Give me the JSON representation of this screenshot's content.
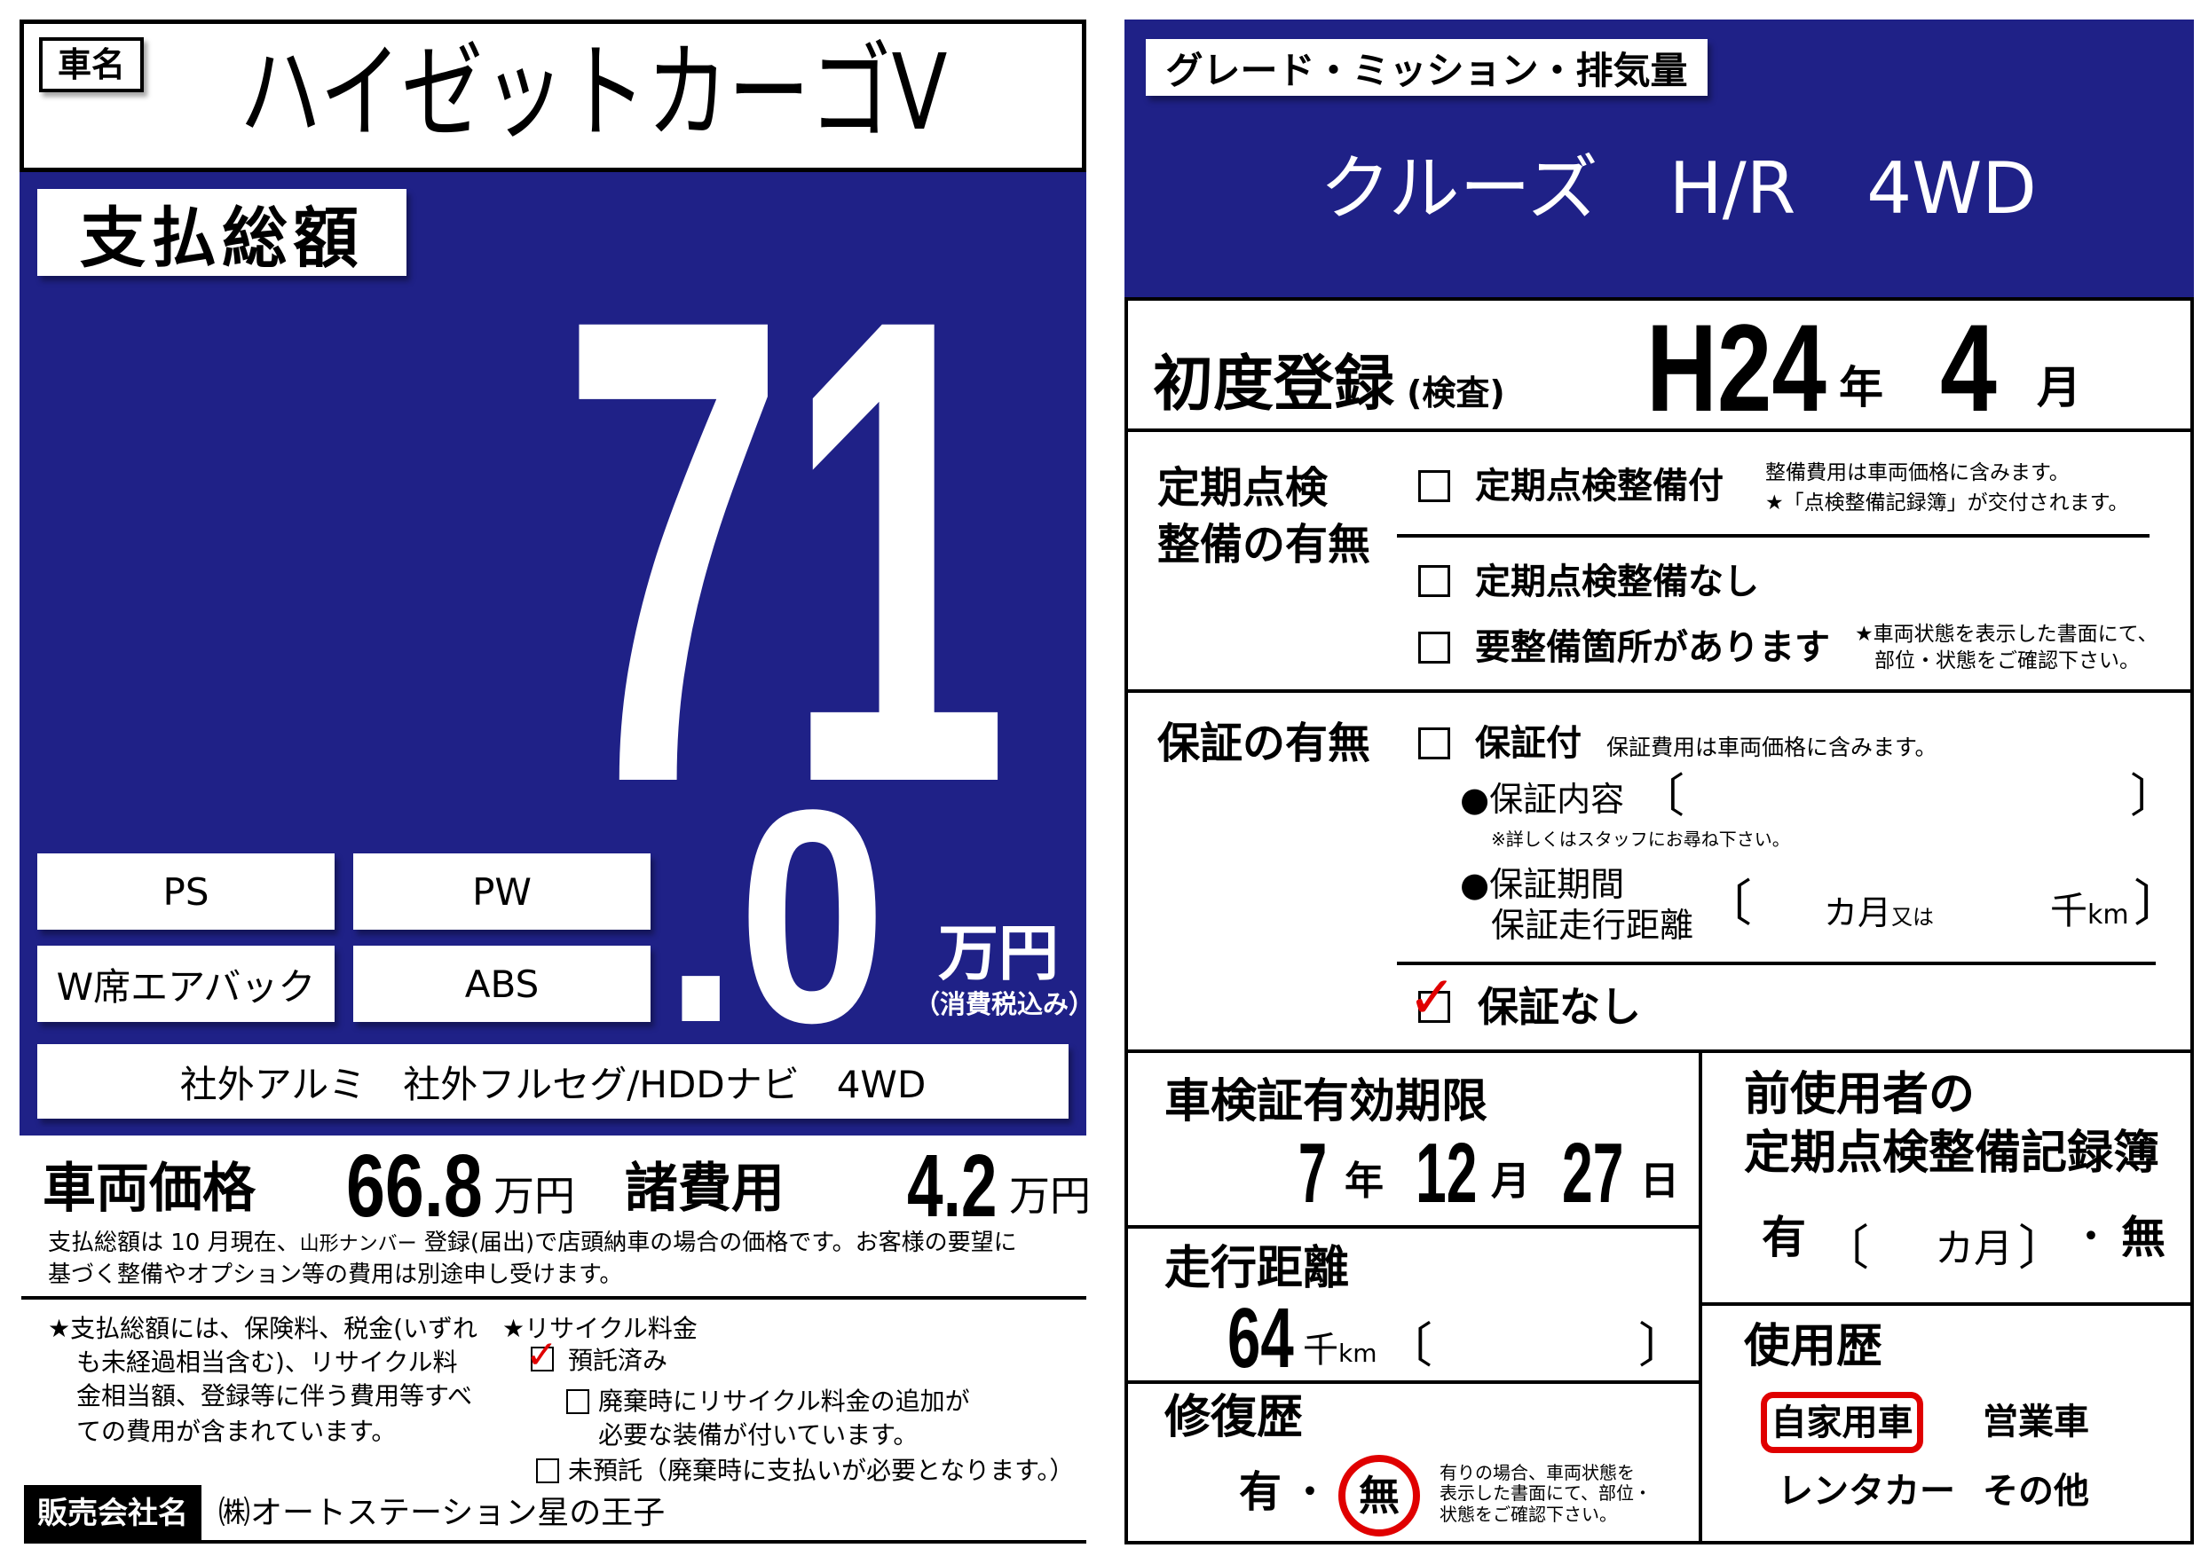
{
  "colors": {
    "panel_blue": "#1f2187",
    "accent_red": "#e00000"
  },
  "left": {
    "car_name_label": "車名",
    "car_name": "ハイゼットカーゴV",
    "total_label": "支払総額",
    "total_int": "71",
    "total_dec": ".0",
    "total_unit": "万円",
    "total_tax_note": "（消費税込み）",
    "options": [
      "PS",
      "PW",
      "W席エアバック",
      "ABS"
    ],
    "options_extra": "社外アルミ　社外フルセグ/HDDナビ　4WD",
    "vehicle_price_label": "車両価格",
    "vehicle_price": "66.8",
    "vehicle_price_unit": "万円",
    "fees_label": "諸費用",
    "fees": "4.2",
    "fees_unit": "万円",
    "price_note_1a": "支払総額は 10 月現在、",
    "price_note_1b": "山形ナンバー",
    "price_note_1c": " 登録(届出)で店頭納車の場合の価格です。お客様の要望に",
    "price_note_2": "基づく整備やオプション等の費用は別途申し受けます。",
    "included_note": [
      "★支払総額には、保険料、税金(いずれ",
      "も未経過相当含む)、リサイクル料",
      "金相当額、登録等に伴う費用等すべ",
      "ての費用が含まれています。"
    ],
    "recycle": {
      "title": "★リサイクル料金",
      "deposited": "預託済み",
      "deposited_checked": true,
      "add_on_1": "廃棄時にリサイクル料金の追加が",
      "add_on_2": "必要な装備が付いています。",
      "add_on_checked": false,
      "not_deposited": "未預託（廃棄時に支払いが必要となります。）",
      "not_deposited_checked": false
    },
    "dealer_label": "販売会社名",
    "dealer_name": "㈱オートステーション星の王子"
  },
  "right": {
    "grade_label": "グレード・ミッション・排気量",
    "grade": "クルーズ　H/R　4WD",
    "first_reg_label": "初度登録",
    "first_reg_sub": "(検査)",
    "first_reg_year": "H24",
    "year_unit": "年",
    "first_reg_month": "4",
    "month_unit": "月",
    "inspection": {
      "label_1": "定期点検",
      "label_2": "整備の有無",
      "opt_with": "定期点検整備付",
      "opt_with_note_1": "整備費用は車両価格に含みます。",
      "opt_with_note_2": "★「点検整備記録簿」が交付されます。",
      "opt_without": "定期点検整備なし",
      "opt_needs": "要整備箇所があります",
      "opt_needs_note_1": "★車両状態を表示した書面にて、",
      "opt_needs_note_2": "部位・状態をご確認下さい。",
      "checked": []
    },
    "warranty": {
      "label": "保証の有無",
      "opt_with": "保証付",
      "opt_with_note": "保証費用は車両価格に含みます。",
      "content_label": "●保証内容",
      "content_note": "※詳しくはスタッフにお尋ね下さい。",
      "period_label": "●保証期間",
      "distance_label": "保証走行距離",
      "months_unit": "カ月",
      "or": "又は",
      "km_unit_1": "千",
      "km_unit_2": "km",
      "opt_none": "保証なし",
      "selected": "保証なし"
    },
    "shaken_label": "車検証有効期限",
    "shaken_year": "7",
    "shaken_month": "12",
    "shaken_day": "27",
    "day_unit": "日",
    "mileage_label": "走行距離",
    "mileage": "64",
    "mileage_unit_1": "千",
    "mileage_unit_2": "km",
    "repair_label": "修復歴",
    "repair_yes": "有",
    "repair_dot": "・",
    "repair_no": "無",
    "repair_selected": "無",
    "repair_note": [
      "有りの場合、車両状態を",
      "表示した書面にて、部位・",
      "状態をご確認下さい。"
    ],
    "prev_record_label_1": "前使用者の",
    "prev_record_label_2": "定期点検整備記録簿",
    "prev_yes": "有",
    "prev_months": "カ月",
    "prev_dot": "・",
    "prev_no": "無",
    "usage_label": "使用歴",
    "usage_options": [
      "自家用車",
      "営業車",
      "レンタカー",
      "その他"
    ],
    "usage_selected": "自家用車",
    "bracket_open": "〔",
    "bracket_close": "〕"
  }
}
